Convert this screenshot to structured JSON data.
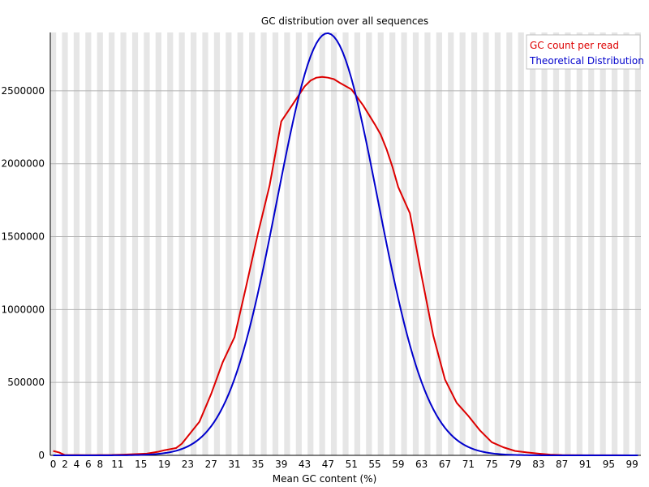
{
  "chart_data": {
    "type": "line",
    "title": "GC distribution over all sequences",
    "xlabel": "Mean GC content (%)",
    "ylabel": "",
    "xlim": [
      0,
      100
    ],
    "ylim": [
      0,
      2900000
    ],
    "grid": true,
    "legend_position": "top-right",
    "x_ticks": [
      "0",
      "2",
      "4",
      "6",
      "8",
      "11",
      "15",
      "19",
      "23",
      "27",
      "31",
      "35",
      "39",
      "43",
      "47",
      "51",
      "55",
      "59",
      "63",
      "67",
      "71",
      "75",
      "79",
      "83",
      "87",
      "91",
      "95",
      "99"
    ],
    "y_ticks": [
      "0",
      "500000",
      "1000000",
      "1500000",
      "2000000",
      "2500000"
    ],
    "series": [
      {
        "name": "GC count per read",
        "color": "#dd0000",
        "points": [
          [
            0,
            30000
          ],
          [
            1,
            20000
          ],
          [
            2,
            2000
          ],
          [
            4,
            2000
          ],
          [
            6,
            1500
          ],
          [
            8,
            2000
          ],
          [
            10,
            2500
          ],
          [
            12,
            5000
          ],
          [
            14,
            8000
          ],
          [
            16,
            12000
          ],
          [
            18,
            25000
          ],
          [
            19,
            35000
          ],
          [
            21,
            50000
          ],
          [
            22,
            80000
          ],
          [
            23,
            130000
          ],
          [
            25,
            230000
          ],
          [
            27,
            420000
          ],
          [
            29,
            640000
          ],
          [
            31,
            810000
          ],
          [
            33,
            1160000
          ],
          [
            35,
            1520000
          ],
          [
            37,
            1850000
          ],
          [
            39,
            2290000
          ],
          [
            41,
            2410000
          ],
          [
            43,
            2530000
          ],
          [
            44,
            2570000
          ],
          [
            45,
            2590000
          ],
          [
            46,
            2595000
          ],
          [
            47,
            2590000
          ],
          [
            48,
            2580000
          ],
          [
            49,
            2555000
          ],
          [
            51,
            2510000
          ],
          [
            53,
            2400000
          ],
          [
            55,
            2270000
          ],
          [
            56,
            2200000
          ],
          [
            57,
            2100000
          ],
          [
            58,
            1980000
          ],
          [
            59,
            1840000
          ],
          [
            61,
            1660000
          ],
          [
            63,
            1230000
          ],
          [
            65,
            820000
          ],
          [
            67,
            520000
          ],
          [
            69,
            360000
          ],
          [
            71,
            270000
          ],
          [
            73,
            170000
          ],
          [
            75,
            90000
          ],
          [
            77,
            55000
          ],
          [
            79,
            30000
          ],
          [
            81,
            20000
          ],
          [
            83,
            12000
          ],
          [
            85,
            5000
          ],
          [
            87,
            2000
          ],
          [
            91,
            1000
          ],
          [
            95,
            500
          ],
          [
            99,
            300
          ]
        ]
      },
      {
        "name": "Theoretical Distribution",
        "color": "#0000cc",
        "gaussian": {
          "mean": 46.9,
          "sd": 8.6,
          "peak": 2895000
        }
      }
    ]
  },
  "legend": {
    "items": [
      {
        "label": "GC count per read",
        "color": "#dd0000"
      },
      {
        "label": "Theoretical Distribution",
        "color": "#0000cc"
      }
    ]
  }
}
